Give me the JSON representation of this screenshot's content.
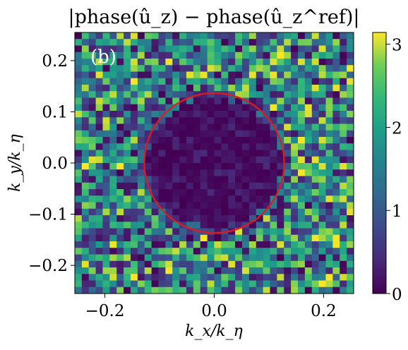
{
  "chart_data": {
    "type": "heatmap",
    "title": "|phase(û_z) − phase(û_z^ref)|",
    "xlabel": "k_x/k_η",
    "ylabel": "k_y/k_η",
    "panel_label": "(b)",
    "xlim": [
      -0.255,
      0.255
    ],
    "ylim": [
      -0.255,
      0.255
    ],
    "xticks": [
      -0.2,
      0.0,
      0.2
    ],
    "xtick_labels": [
      "−0.2",
      "0.0",
      "0.2"
    ],
    "yticks": [
      -0.2,
      -0.1,
      0.0,
      0.1,
      0.2
    ],
    "ytick_labels": [
      "−0.2",
      "−0.1",
      "0.0",
      "0.1",
      "0.2"
    ],
    "grid_size": 40,
    "colorbar": {
      "range": [
        0,
        3.14159
      ],
      "ticks": [
        0,
        1,
        2,
        3
      ],
      "tick_labels": [
        "0",
        "1",
        "2",
        "3"
      ],
      "colormap": "viridis"
    },
    "circle": {
      "center": [
        0.0,
        0.0
      ],
      "radius": 0.128,
      "color": "#e31a1c"
    },
    "cell_value_model": {
      "inside_circle": "near 0 (≈0–0.4 rad)",
      "outside_circle": "uniformly random on [0, π]"
    }
  }
}
